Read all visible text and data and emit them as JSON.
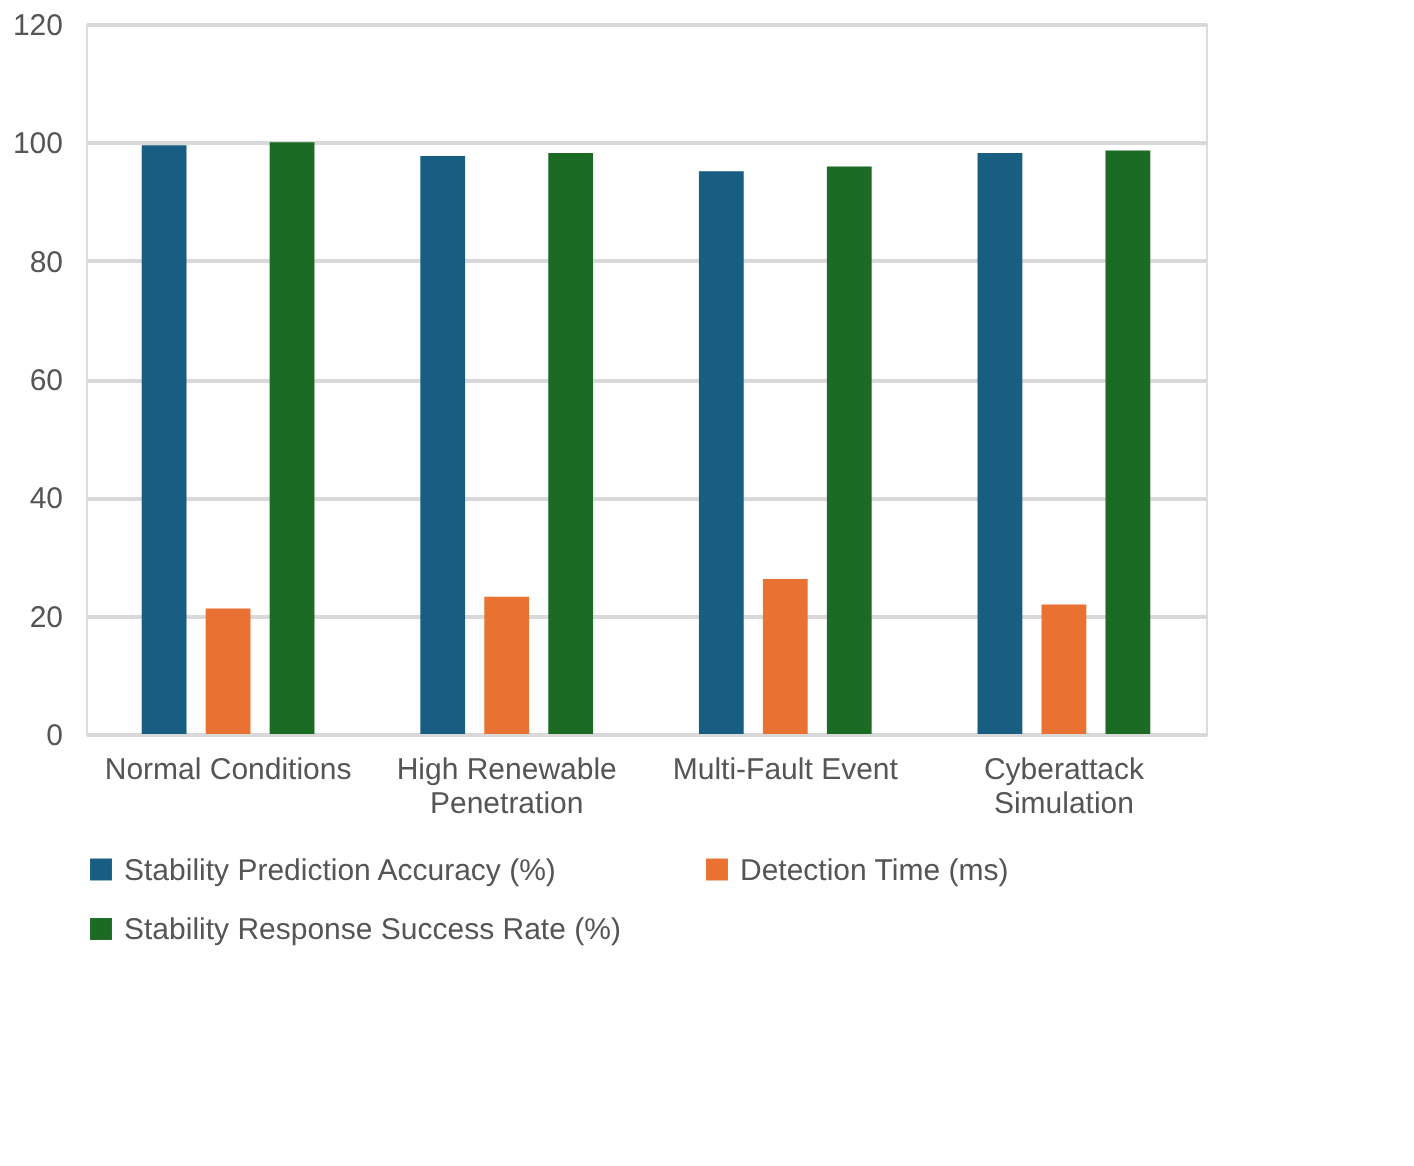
{
  "chart_data": {
    "type": "bar",
    "categories": [
      "Normal Conditions",
      "High Renewable Penetration",
      "Multi-Fault Event",
      "Cyberattack Simulation"
    ],
    "series": [
      {
        "name": "Stability Prediction Accuracy (%)",
        "color": "#175e82",
        "values": [
          99.5,
          97.7,
          95.1,
          98.2
        ]
      },
      {
        "name": "Detection Time (ms)",
        "color": "#e97132",
        "values": [
          21.2,
          23.2,
          26.2,
          21.9
        ]
      },
      {
        "name": "Stability Response Success Rate (%)",
        "color": "#1b6b25",
        "values": [
          100,
          98.2,
          95.9,
          98.6
        ]
      }
    ],
    "ylim": [
      0,
      120
    ],
    "yticks": [
      0,
      20,
      40,
      60,
      80,
      100,
      120
    ],
    "grid": "y",
    "legend": "bottom"
  }
}
